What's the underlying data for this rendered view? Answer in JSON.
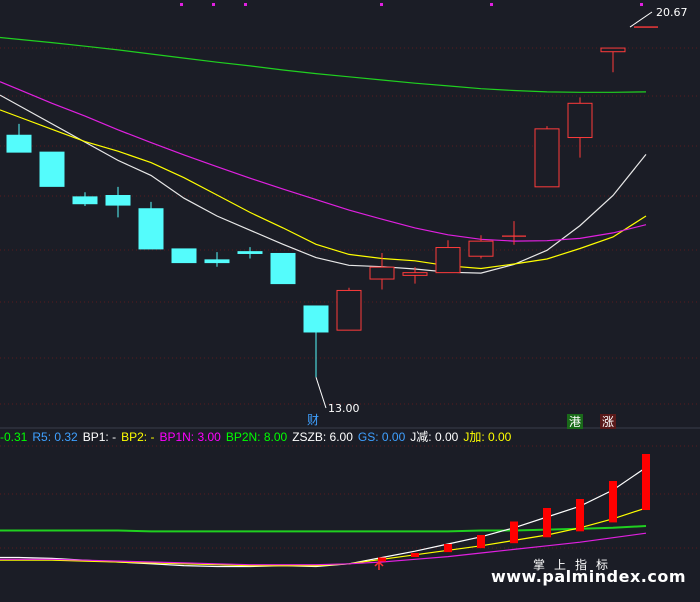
{
  "colors": {
    "background": "#1b1d26",
    "candle_up": "#ff3b3b",
    "candle_down": "#54fcfc",
    "ma_white": "#e8e8e8",
    "ma_yellow": "#ffff00",
    "ma_magenta": "#e020e0",
    "ma_green": "#20d020",
    "volume_bar": "#ff0000",
    "grid": "#8b1a1a"
  },
  "annotations": {
    "high_label": "20.67",
    "low_label": "13.00",
    "marker_cai": "财",
    "marker_gang": "港",
    "marker_zhang": "涨"
  },
  "indicator_legend": [
    {
      "text": "-0.31",
      "color": "#00ff00"
    },
    {
      "text": "R5: 0.32",
      "color": "#3fa0ff"
    },
    {
      "text": "BP1: -",
      "color": "#ffffff"
    },
    {
      "text": "BP2: -",
      "color": "#ffff00"
    },
    {
      "text": "BP1N: 3.00",
      "color": "#ff00ff"
    },
    {
      "text": "BP2N: 8.00",
      "color": "#00ff00"
    },
    {
      "text": "ZSZB: 6.00",
      "color": "#ffffff"
    },
    {
      "text": "GS: 0.00",
      "color": "#3fa0ff"
    },
    {
      "text": "J减: 0.00",
      "color": "#ffffff"
    },
    {
      "text": "J加: 0.00",
      "color": "#ffff00"
    }
  ],
  "watermark": {
    "en": "www.palmindex.com",
    "cn": "掌上指标"
  },
  "chart_data": [
    {
      "type": "candlestick",
      "ylim": [
        12.5,
        21.0
      ],
      "x": [
        1,
        2,
        3,
        4,
        5,
        6,
        7,
        8,
        9,
        10,
        11,
        12,
        13,
        14,
        15,
        16,
        17,
        18,
        19,
        20
      ],
      "candles": [
        {
          "open": 18.3,
          "close": 17.93,
          "high": 18.55,
          "low": 17.93
        },
        {
          "open": 17.93,
          "close": 17.18,
          "high": 17.93,
          "low": 17.18
        },
        {
          "open": 16.95,
          "close": 16.8,
          "high": 17.05,
          "low": 16.75
        },
        {
          "open": 16.98,
          "close": 16.77,
          "high": 17.17,
          "low": 16.5
        },
        {
          "open": 16.69,
          "close": 15.81,
          "high": 16.84,
          "low": 15.81
        },
        {
          "open": 15.81,
          "close": 15.51,
          "high": 15.81,
          "low": 15.51
        },
        {
          "open": 15.57,
          "close": 15.51,
          "high": 15.74,
          "low": 15.42
        },
        {
          "open": 15.75,
          "close": 15.71,
          "high": 15.85,
          "low": 15.6
        },
        {
          "open": 15.71,
          "close": 15.05,
          "high": 15.71,
          "low": 15.05
        },
        {
          "open": 14.56,
          "close": 13.99,
          "high": 14.56,
          "low": 13.0
        },
        {
          "open": 14.03,
          "close": 14.9,
          "high": 14.96,
          "low": 14.03
        },
        {
          "open": 15.15,
          "close": 15.41,
          "high": 15.72,
          "low": 14.92
        },
        {
          "open": 15.23,
          "close": 15.29,
          "high": 15.41,
          "low": 15.05
        },
        {
          "open": 15.29,
          "close": 15.84,
          "high": 16.0,
          "low": 15.29
        },
        {
          "open": 15.65,
          "close": 15.98,
          "high": 16.11,
          "low": 15.6
        },
        {
          "open": 16.09,
          "close": 16.09,
          "high": 16.42,
          "low": 15.9
        },
        {
          "open": 17.17,
          "close": 18.44,
          "high": 18.5,
          "low": 17.17
        },
        {
          "open": 18.25,
          "close": 19.0,
          "high": 19.13,
          "low": 17.81
        },
        {
          "open": 20.13,
          "close": 20.21,
          "high": 20.21,
          "low": 19.68
        },
        {
          "open": 20.67,
          "close": 20.67,
          "high": 20.67,
          "low": 20.67
        }
      ],
      "ma_lines": [
        {
          "color": "#e8e8e8",
          "values": [
            null,
            null,
            18.15,
            17.75,
            17.42,
            16.92,
            16.53,
            16.22,
            15.91,
            15.62,
            15.45,
            15.42,
            15.37,
            15.3,
            15.28,
            15.47,
            15.78,
            16.32,
            16.98,
            17.88
          ]
        },
        {
          "color": "#ffff00",
          "values": [
            18.7,
            18.43,
            18.16,
            17.95,
            17.7,
            17.37,
            16.99,
            16.61,
            16.27,
            15.91,
            15.69,
            15.6,
            15.55,
            15.44,
            15.38,
            15.48,
            15.59,
            15.82,
            16.07,
            16.53
          ]
        },
        {
          "color": "#e020e0",
          "values": [
            19.3,
            19.0,
            18.72,
            18.42,
            18.14,
            17.87,
            17.61,
            17.36,
            17.12,
            16.89,
            16.66,
            16.46,
            16.27,
            16.12,
            16.02,
            15.98,
            15.99,
            16.04,
            16.16,
            16.34
          ]
        },
        {
          "color": "#20d020",
          "values": [
            20.4,
            20.33,
            20.25,
            20.17,
            20.08,
            19.99,
            19.9,
            19.82,
            19.73,
            19.65,
            19.58,
            19.51,
            19.44,
            19.38,
            19.32,
            19.28,
            19.25,
            19.24,
            19.24,
            19.25
          ]
        }
      ]
    },
    {
      "type": "bar",
      "series": [
        {
          "values": [
            0,
            0,
            0,
            0,
            0,
            0,
            0,
            0,
            0,
            0,
            0,
            0.05,
            0.1,
            0.2,
            0.3,
            0.45,
            0.6,
            0.7,
            0.9,
            1.2
          ]
        }
      ],
      "lines": [
        {
          "color": "#20d020",
          "values": [
            0.35,
            0.35,
            0.35,
            0.35,
            0.34,
            0.34,
            0.34,
            0.34,
            0.34,
            0.34,
            0.34,
            0.34,
            0.34,
            0.34,
            0.35,
            0.35,
            0.36,
            0.37,
            0.38,
            0.4
          ]
        },
        {
          "color": "#ffffff",
          "values": [
            0.05,
            0.04,
            0.02,
            0.0,
            -0.02,
            -0.04,
            -0.05,
            -0.05,
            -0.04,
            -0.05,
            -0.02,
            0.05,
            0.12,
            0.2,
            0.28,
            0.38,
            0.5,
            0.62,
            0.8,
            1.05
          ]
        },
        {
          "color": "#ffff00",
          "values": [
            0.02,
            0.02,
            0.01,
            0.0,
            -0.01,
            -0.02,
            -0.03,
            -0.04,
            -0.04,
            -0.04,
            -0.02,
            0.03,
            0.08,
            0.13,
            0.18,
            0.24,
            0.3,
            0.38,
            0.48,
            0.6
          ]
        },
        {
          "color": "#e020e0",
          "values": [
            0.03,
            0.03,
            0.02,
            0.01,
            0.0,
            -0.01,
            -0.02,
            -0.03,
            -0.03,
            -0.03,
            -0.02,
            0.0,
            0.03,
            0.06,
            0.1,
            0.14,
            0.18,
            0.22,
            0.27,
            0.32
          ]
        }
      ]
    }
  ]
}
